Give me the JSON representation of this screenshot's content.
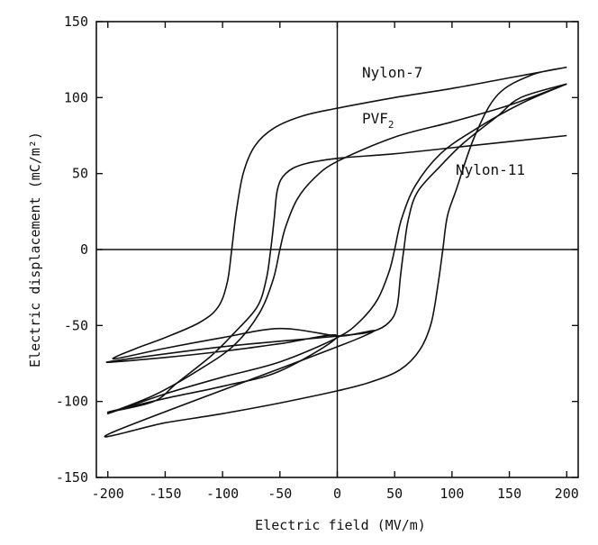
{
  "chart_data": {
    "type": "line",
    "title": "",
    "xlabel": "Electric field (MV/m)",
    "ylabel": "Electric displacement (mC/m²)",
    "xlim": [
      -210,
      210
    ],
    "ylim": [
      -150,
      150
    ],
    "x_ticks": [
      -200,
      -150,
      -100,
      -50,
      0,
      50,
      100,
      150,
      200
    ],
    "y_ticks": [
      -150,
      -100,
      -50,
      0,
      50,
      100,
      150
    ],
    "grid": false,
    "zero_lines": true,
    "series": [
      {
        "name": "Nylon-7",
        "label_text": "Nylon-7",
        "points": [
          [
            200,
            120
          ],
          [
            150,
            113
          ],
          [
            100,
            106
          ],
          [
            50,
            100
          ],
          [
            0,
            93
          ],
          [
            -30,
            88
          ],
          [
            -55,
            80
          ],
          [
            -72,
            68
          ],
          [
            -82,
            50
          ],
          [
            -88,
            25
          ],
          [
            -92,
            0
          ],
          [
            -96,
            -22
          ],
          [
            -104,
            -38
          ],
          [
            -120,
            -48
          ],
          [
            -150,
            -58
          ],
          [
            -175,
            -65
          ],
          [
            -195,
            -72
          ],
          [
            -150,
            -65
          ],
          [
            -100,
            -58
          ],
          [
            -50,
            -52
          ],
          [
            0,
            -57
          ],
          [
            20,
            -58
          ],
          [
            -195,
            -120
          ],
          [
            -150,
            -114
          ],
          [
            -100,
            -108
          ],
          [
            -50,
            -101
          ],
          [
            0,
            -93
          ],
          [
            30,
            -87
          ],
          [
            55,
            -79
          ],
          [
            72,
            -66
          ],
          [
            82,
            -48
          ],
          [
            88,
            -22
          ],
          [
            92,
            0
          ],
          [
            96,
            22
          ],
          [
            104,
            40
          ],
          [
            120,
            75
          ],
          [
            140,
            102
          ],
          [
            170,
            115
          ],
          [
            200,
            120
          ]
        ]
      },
      {
        "name": "PVF2",
        "label_text": "PVF",
        "label_sub": "2",
        "points": [
          [
            200,
            109
          ],
          [
            150,
            95
          ],
          [
            100,
            84
          ],
          [
            50,
            74
          ],
          [
            0,
            58
          ],
          [
            -20,
            47
          ],
          [
            -35,
            33
          ],
          [
            -45,
            15
          ],
          [
            -50,
            0
          ],
          [
            -56,
            -20
          ],
          [
            -68,
            -42
          ],
          [
            -90,
            -63
          ],
          [
            -120,
            -79
          ],
          [
            -160,
            -96
          ],
          [
            -200,
            -108
          ],
          [
            -150,
            -95
          ],
          [
            -100,
            -84
          ],
          [
            -50,
            -74
          ],
          [
            0,
            -58
          ],
          [
            20,
            -47
          ],
          [
            35,
            -33
          ],
          [
            45,
            -15
          ],
          [
            50,
            0
          ],
          [
            56,
            20
          ],
          [
            68,
            42
          ],
          [
            90,
            63
          ],
          [
            120,
            79
          ],
          [
            160,
            96
          ],
          [
            200,
            109
          ]
        ]
      },
      {
        "name": "Nylon-11",
        "label_text": "Nylon-11",
        "points": [
          [
            200,
            75
          ],
          [
            150,
            71
          ],
          [
            100,
            67
          ],
          [
            50,
            63
          ],
          [
            0,
            60
          ],
          [
            -30,
            56
          ],
          [
            -45,
            50
          ],
          [
            -52,
            40
          ],
          [
            -55,
            20
          ],
          [
            -58,
            0
          ],
          [
            -62,
            -20
          ],
          [
            -70,
            -38
          ],
          [
            -90,
            -55
          ],
          [
            -110,
            -70
          ],
          [
            -140,
            -88
          ],
          [
            -160,
            -100
          ],
          [
            -200,
            -107
          ],
          [
            -150,
            -98
          ],
          [
            -100,
            -90
          ],
          [
            -50,
            -80
          ],
          [
            0,
            -57
          ],
          [
            -50,
            -62
          ],
          [
            -100,
            -67
          ],
          [
            -150,
            -71
          ],
          [
            -200,
            -74
          ],
          [
            -100,
            -64
          ],
          [
            0,
            -57
          ],
          [
            30,
            -54
          ],
          [
            45,
            -48
          ],
          [
            52,
            -38
          ],
          [
            55,
            -18
          ],
          [
            58,
            0
          ],
          [
            62,
            20
          ],
          [
            70,
            38
          ],
          [
            90,
            55
          ],
          [
            110,
            70
          ],
          [
            140,
            88
          ],
          [
            160,
            100
          ],
          [
            200,
            109
          ]
        ]
      }
    ]
  }
}
